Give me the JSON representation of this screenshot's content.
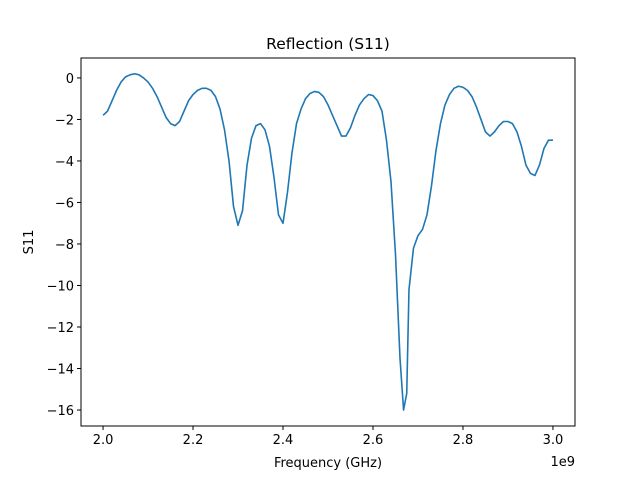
{
  "chart_data": {
    "type": "line",
    "title": "Reflection (S11)",
    "x_label": "Frequency (GHz)",
    "y_label": "S11",
    "x_offset_label": "1e9",
    "x": [
      2.0,
      2.01,
      2.02,
      2.03,
      2.04,
      2.05,
      2.06,
      2.07,
      2.08,
      2.09,
      2.1,
      2.11,
      2.12,
      2.13,
      2.14,
      2.15,
      2.16,
      2.17,
      2.18,
      2.19,
      2.2,
      2.21,
      2.22,
      2.23,
      2.24,
      2.25,
      2.26,
      2.27,
      2.28,
      2.29,
      2.3,
      2.31,
      2.32,
      2.33,
      2.34,
      2.35,
      2.36,
      2.37,
      2.38,
      2.39,
      2.4,
      2.41,
      2.42,
      2.43,
      2.44,
      2.45,
      2.46,
      2.47,
      2.48,
      2.49,
      2.5,
      2.51,
      2.52,
      2.53,
      2.54,
      2.55,
      2.56,
      2.57,
      2.58,
      2.59,
      2.6,
      2.61,
      2.62,
      2.63,
      2.64,
      2.65,
      2.66,
      2.668,
      2.675,
      2.68,
      2.69,
      2.7,
      2.71,
      2.72,
      2.73,
      2.74,
      2.75,
      2.76,
      2.77,
      2.78,
      2.79,
      2.8,
      2.81,
      2.82,
      2.83,
      2.84,
      2.85,
      2.86,
      2.87,
      2.88,
      2.89,
      2.9,
      2.91,
      2.92,
      2.93,
      2.94,
      2.95,
      2.96,
      2.97,
      2.98,
      2.99,
      3.0
    ],
    "series": [
      {
        "color": "#1f77b4",
        "values": [
          -1.8,
          -1.6,
          -1.1,
          -0.6,
          -0.2,
          0.05,
          0.15,
          0.2,
          0.15,
          0.0,
          -0.2,
          -0.5,
          -0.9,
          -1.4,
          -1.9,
          -2.2,
          -2.3,
          -2.1,
          -1.6,
          -1.1,
          -0.8,
          -0.6,
          -0.5,
          -0.5,
          -0.6,
          -0.9,
          -1.5,
          -2.5,
          -4.0,
          -6.2,
          -7.1,
          -6.4,
          -4.2,
          -2.9,
          -2.3,
          -2.2,
          -2.5,
          -3.3,
          -4.8,
          -6.6,
          -7.0,
          -5.5,
          -3.6,
          -2.2,
          -1.5,
          -1.0,
          -0.75,
          -0.65,
          -0.7,
          -0.9,
          -1.3,
          -1.8,
          -2.3,
          -2.8,
          -2.8,
          -2.4,
          -1.8,
          -1.3,
          -1.0,
          -0.8,
          -0.85,
          -1.1,
          -1.6,
          -3.0,
          -5.0,
          -8.5,
          -13.5,
          -16.0,
          -15.2,
          -10.2,
          -8.2,
          -7.6,
          -7.3,
          -6.6,
          -5.2,
          -3.5,
          -2.2,
          -1.3,
          -0.8,
          -0.5,
          -0.4,
          -0.45,
          -0.6,
          -0.9,
          -1.4,
          -2.0,
          -2.6,
          -2.8,
          -2.6,
          -2.3,
          -2.1,
          -2.1,
          -2.2,
          -2.6,
          -3.3,
          -4.2,
          -4.6,
          -4.7,
          -4.2,
          -3.4,
          -3.0,
          -3.0
        ]
      }
    ],
    "xlim": [
      1.951,
      3.049
    ],
    "ylim": [
      -16.77,
      0.96
    ],
    "xticks": [
      {
        "value": 2.0,
        "label": "2.0"
      },
      {
        "value": 2.2,
        "label": "2.2"
      },
      {
        "value": 2.4,
        "label": "2.4"
      },
      {
        "value": 2.6,
        "label": "2.6"
      },
      {
        "value": 2.8,
        "label": "2.8"
      },
      {
        "value": 3.0,
        "label": "3.0"
      }
    ],
    "yticks": [
      0,
      {
        "value": -2,
        "label": "−2"
      },
      {
        "value": -4,
        "label": "−4"
      },
      {
        "value": -6,
        "label": "−6"
      },
      {
        "value": -8,
        "label": "−8"
      },
      {
        "value": -10,
        "label": "−10"
      },
      {
        "value": -12,
        "label": "−12"
      },
      {
        "value": -14,
        "label": "−14"
      },
      {
        "value": -16,
        "label": "−16"
      }
    ]
  }
}
